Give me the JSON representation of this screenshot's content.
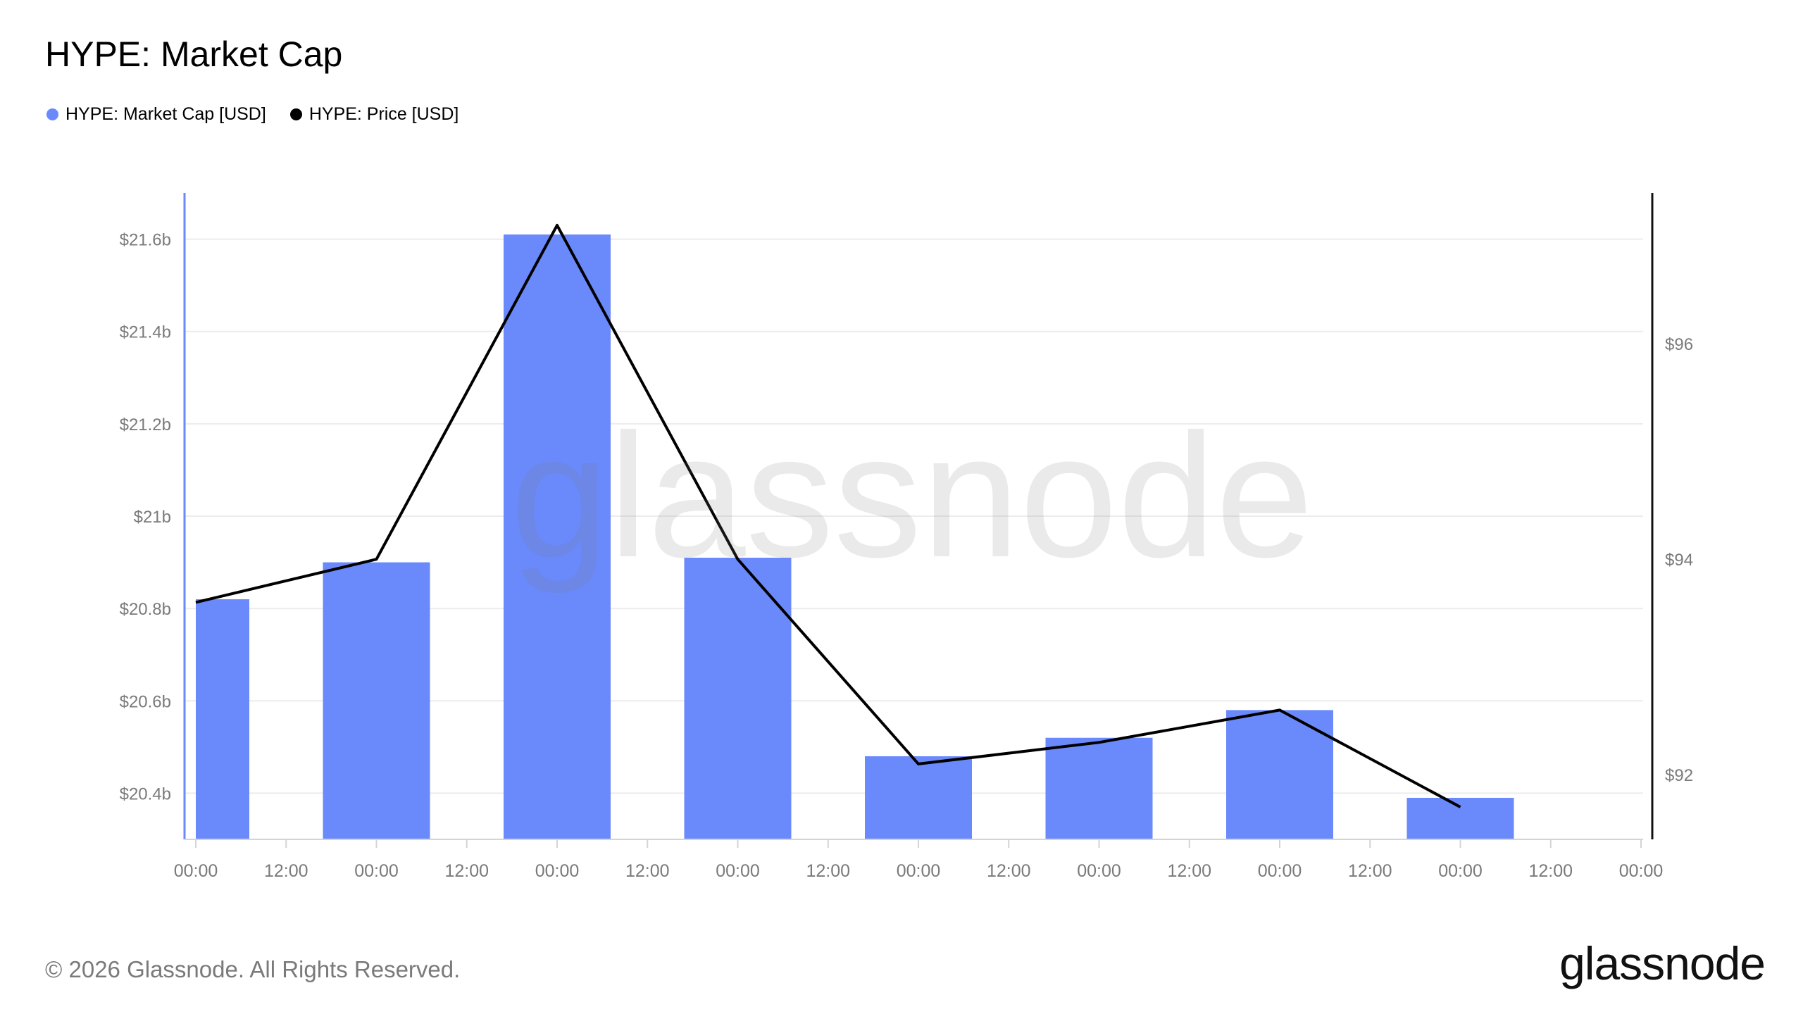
{
  "title": "HYPE: Market Cap",
  "legend": [
    {
      "label": "HYPE: Market Cap [USD]",
      "color": "#6a89fb"
    },
    {
      "label": "HYPE: Price [USD]",
      "color": "#000000"
    }
  ],
  "watermark": "glassnode",
  "footer": {
    "copyright": "© 2026 Glassnode. All Rights Reserved.",
    "logo": "glassnode"
  },
  "chart_data": {
    "type": "bar",
    "title": "HYPE: Market Cap",
    "x_ticks": [
      "00:00",
      "12:00",
      "00:00",
      "12:00",
      "00:00",
      "12:00",
      "00:00",
      "12:00",
      "00:00",
      "12:00",
      "00:00",
      "12:00",
      "00:00",
      "12:00",
      "00:00",
      "12:00",
      "00:00"
    ],
    "grid": true,
    "left_axis": {
      "ticks": [
        20.4,
        20.6,
        20.8,
        21.0,
        21.2,
        21.4,
        21.6
      ],
      "tick_labels": [
        "$20.4b",
        "$20.6b",
        "$20.8b",
        "$21b",
        "$21.2b",
        "$21.4b",
        "$21.6b"
      ],
      "range": [
        20.3,
        21.7
      ]
    },
    "right_axis": {
      "ticks": [
        92,
        94,
        96
      ],
      "tick_labels": [
        "$92",
        "$94",
        "$96"
      ],
      "range": [
        91.4,
        97.4
      ]
    },
    "series": [
      {
        "name": "HYPE: Market Cap [USD]",
        "type": "bar",
        "axis": "left",
        "color": "#6a89fb",
        "values": [
          20.82,
          20.9,
          21.61,
          20.91,
          20.48,
          20.52,
          20.58,
          20.39
        ]
      },
      {
        "name": "HYPE: Price [USD]",
        "type": "line",
        "axis": "right",
        "color": "#000000",
        "values": [
          93.6,
          94.0,
          97.1,
          94.0,
          92.1,
          92.3,
          92.6,
          91.7
        ]
      }
    ]
  }
}
